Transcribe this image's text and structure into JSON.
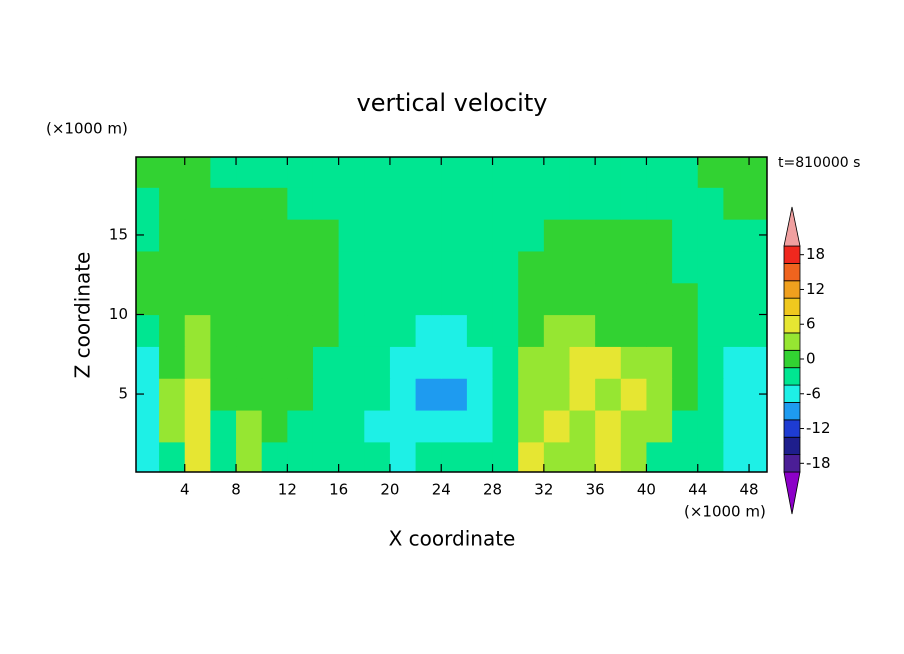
{
  "chart_data": {
    "type": "contour",
    "title": "vertical velocity",
    "xlabel": "X coordinate",
    "ylabel": "Z coordinate",
    "xunit": "(×1000 m)",
    "yunit": "(×1000 m)",
    "annotation": "t=810000 s",
    "xlim": [
      0.2,
      49.4
    ],
    "ylim": [
      0.1,
      19.9
    ],
    "xticks": [
      4,
      8,
      12,
      16,
      20,
      24,
      28,
      32,
      36,
      40,
      44,
      48
    ],
    "yticks": [
      5,
      10,
      15
    ],
    "x": [
      1,
      3,
      5,
      7,
      9,
      11,
      13,
      15,
      17,
      19,
      21,
      23,
      25,
      27,
      29,
      31,
      33,
      35,
      37,
      39,
      41,
      43,
      45,
      47,
      49
    ],
    "y": [
      1,
      3,
      5,
      7,
      9,
      11,
      13,
      15,
      17,
      19
    ],
    "z": [
      [
        -6,
        -3,
        6,
        -3,
        3,
        -3,
        -3,
        -3,
        -3,
        -3,
        -6,
        -3,
        -3,
        -3,
        -3,
        6,
        3,
        3,
        6,
        3,
        -3,
        -3,
        -3,
        -6,
        -6
      ],
      [
        -6,
        3,
        6,
        -3,
        3,
        0,
        -3,
        -3,
        -3,
        -6,
        -6,
        -6,
        -6,
        -6,
        -3,
        3,
        6,
        3,
        6,
        3,
        3,
        -3,
        -3,
        -6,
        -6
      ],
      [
        -6,
        3,
        6,
        0,
        0,
        0,
        0,
        -3,
        -3,
        -3,
        -6,
        -9,
        -9,
        -6,
        -3,
        3,
        3,
        6,
        3,
        6,
        3,
        0,
        -3,
        -6,
        -6
      ],
      [
        -6,
        0,
        3,
        0,
        0,
        0,
        0,
        -3,
        -3,
        -3,
        -6,
        -6,
        -6,
        -6,
        -3,
        3,
        3,
        6,
        6,
        3,
        3,
        0,
        -3,
        -6,
        -6
      ],
      [
        -3,
        0,
        3,
        0,
        0,
        0,
        0,
        0,
        -3,
        -3,
        -3,
        -6,
        -6,
        -3,
        -3,
        0,
        3,
        3,
        0,
        0,
        0,
        0,
        -3,
        -3,
        -3
      ],
      [
        0,
        0,
        0,
        0,
        0,
        0,
        0,
        0,
        -3,
        -3,
        -3,
        -3,
        -3,
        -3,
        -3,
        0,
        0,
        0,
        0,
        0,
        0,
        0,
        -3,
        -3,
        -3
      ],
      [
        0,
        0,
        0,
        0,
        0,
        0,
        0,
        0,
        -3,
        -3,
        -3,
        -3,
        -3,
        -3,
        -3,
        0,
        0,
        0,
        0,
        0,
        0,
        -3,
        -3,
        -3,
        -3
      ],
      [
        -3,
        0,
        0,
        0,
        0,
        0,
        0,
        0,
        -3,
        -3,
        -3,
        -3,
        -3,
        -3,
        -3,
        -3,
        0,
        0,
        0,
        0,
        0,
        -3,
        -3,
        -3,
        -3
      ],
      [
        -3,
        0,
        0,
        0,
        0,
        0,
        -3,
        -3,
        -3,
        -3,
        -3,
        -3,
        -3,
        -3,
        -3,
        -3,
        -3,
        -3,
        -3,
        -3,
        -3,
        -3,
        -3,
        0,
        0
      ],
      [
        0,
        0,
        0,
        -3,
        -3,
        -3,
        -3,
        -3,
        -3,
        -3,
        -3,
        -3,
        -3,
        -3,
        -3,
        -3,
        -3,
        -3,
        -3,
        -3,
        -3,
        -3,
        0,
        0,
        0
      ]
    ],
    "levels": [
      -18,
      -15,
      -12,
      -9,
      -6,
      -3,
      0,
      3,
      6,
      9,
      12,
      15,
      18
    ],
    "colors": [
      "#8c00c8",
      "#4b1e96",
      "#1e1e8c",
      "#1e3cd2",
      "#1e9bf0",
      "#1ef0e6",
      "#00e691",
      "#32d232",
      "#96e632",
      "#e6e632",
      "#f0c81e",
      "#f0a01e",
      "#f0641e",
      "#f0281e",
      "#f0a0a0"
    ],
    "colorbar_ticks": [
      18,
      12,
      6,
      0,
      -6,
      -12,
      -18
    ]
  }
}
